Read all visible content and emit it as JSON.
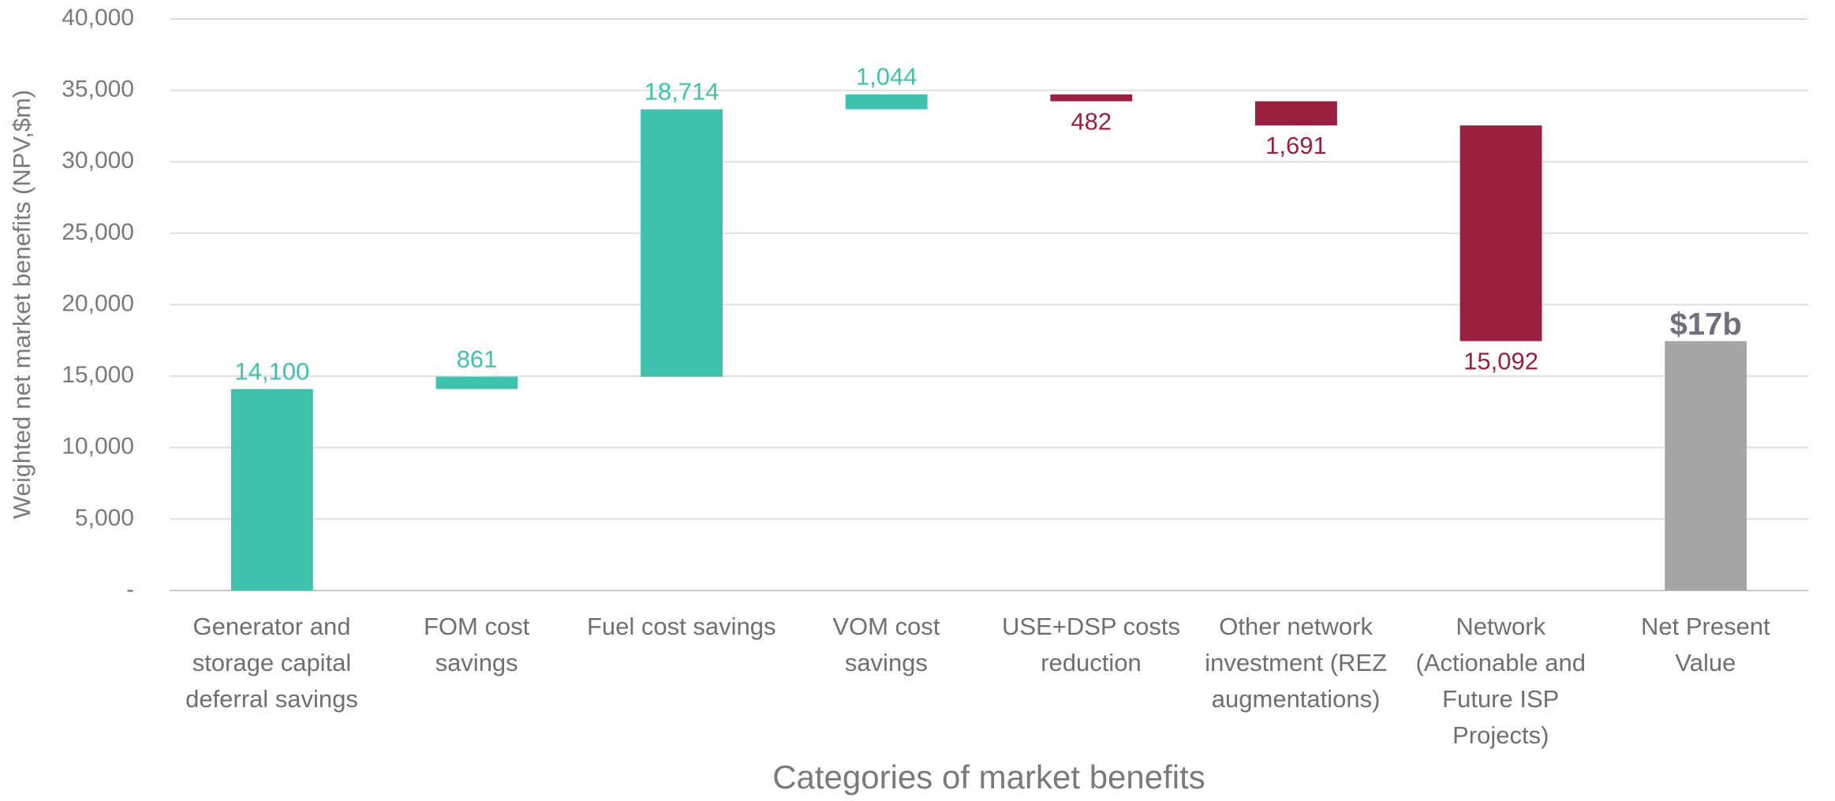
{
  "chart_data": {
    "type": "waterfall",
    "x_label": "Categories of market benefits",
    "y_label": "Weighted net market benefits (NPV,$m)",
    "categories": [
      "Generator and\nstorage capital\ndeferral savings",
      "FOM cost\nsavings",
      "Fuel cost savings",
      "VOM cost\nsavings",
      "USE+DSP costs\nreduction",
      "Other network\ninvestment (REZ\naugmentations)",
      "Network\n(Actionable and\nFuture ISP\nProjects)",
      "Net Present\nValue"
    ],
    "values": [
      14100,
      861,
      18714,
      1044,
      -482,
      -1691,
      -15092,
      17454
    ],
    "value_labels": [
      "14,100",
      "861",
      "18,714",
      "1,044",
      "482",
      "1,691",
      "15,092",
      "$17b"
    ],
    "last_is_total": true,
    "increase_color": "#40c1ac",
    "decrease_color": "#9b1f40",
    "total_color": "#a5a5a5",
    "ylim": [
      0,
      40000
    ],
    "yticks": [
      {
        "value": 0,
        "label": "-"
      },
      {
        "value": 5000,
        "label": "5,000"
      },
      {
        "value": 10000,
        "label": "10,000"
      },
      {
        "value": 15000,
        "label": "15,000"
      },
      {
        "value": 20000,
        "label": "20,000"
      },
      {
        "value": 25000,
        "label": "25,000"
      },
      {
        "value": 30000,
        "label": "30,000"
      },
      {
        "value": 35000,
        "label": "35,000"
      },
      {
        "value": 40000,
        "label": "40,000"
      }
    ],
    "grid": true
  }
}
